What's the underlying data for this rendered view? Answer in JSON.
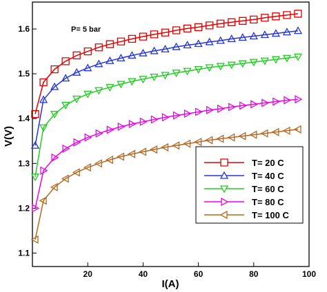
{
  "chart_data": {
    "type": "line",
    "title": "",
    "xlabel": "I(A)",
    "ylabel": "V(V)",
    "xlim": [
      0,
      100
    ],
    "ylim": [
      1.07,
      1.66
    ],
    "xticks": [
      20,
      40,
      60,
      80,
      100
    ],
    "yticks": [
      1.1,
      1.2,
      1.3,
      1.4,
      1.5,
      1.6
    ],
    "annotation": "P= 5 bar",
    "legend_position": "lower-right",
    "grid": false,
    "series": [
      {
        "name": "T= 20 C",
        "color": "#dd0000",
        "marker": "square",
        "x": [
          1,
          4,
          8,
          12,
          16,
          20,
          24,
          28,
          32,
          36,
          40,
          44,
          48,
          52,
          56,
          60,
          64,
          68,
          72,
          76,
          80,
          84,
          88,
          92,
          96
        ],
        "y": [
          1.41,
          1.481,
          1.51,
          1.528,
          1.541,
          1.55,
          1.559,
          1.566,
          1.572,
          1.578,
          1.583,
          1.588,
          1.592,
          1.597,
          1.601,
          1.604,
          1.608,
          1.612,
          1.615,
          1.618,
          1.621,
          1.625,
          1.628,
          1.631,
          1.634
        ]
      },
      {
        "name": "T= 40 C",
        "color": "#2233dd",
        "marker": "triangle-up",
        "x": [
          1,
          4,
          8,
          12,
          16,
          20,
          24,
          28,
          32,
          36,
          40,
          44,
          48,
          52,
          56,
          60,
          64,
          68,
          72,
          76,
          80,
          84,
          88,
          92,
          96
        ],
        "y": [
          1.34,
          1.442,
          1.471,
          1.49,
          1.503,
          1.513,
          1.522,
          1.529,
          1.535,
          1.541,
          1.546,
          1.551,
          1.555,
          1.56,
          1.564,
          1.567,
          1.571,
          1.574,
          1.578,
          1.581,
          1.584,
          1.587,
          1.59,
          1.593,
          1.596
        ]
      },
      {
        "name": "T= 60 C",
        "color": "#22cc22",
        "marker": "triangle-down",
        "x": [
          1,
          4,
          8,
          12,
          16,
          20,
          24,
          28,
          32,
          36,
          40,
          44,
          48,
          52,
          56,
          60,
          64,
          68,
          72,
          76,
          80,
          84,
          88,
          92,
          96
        ],
        "y": [
          1.27,
          1.38,
          1.41,
          1.43,
          1.444,
          1.455,
          1.463,
          1.47,
          1.477,
          1.483,
          1.488,
          1.493,
          1.497,
          1.502,
          1.506,
          1.51,
          1.514,
          1.517,
          1.52,
          1.523,
          1.526,
          1.529,
          1.532,
          1.535,
          1.538
        ]
      },
      {
        "name": "T= 80 C",
        "color": "#ee00ee",
        "marker": "triangle-right",
        "x": [
          1,
          4,
          8,
          12,
          16,
          20,
          24,
          28,
          32,
          36,
          40,
          44,
          48,
          52,
          56,
          60,
          64,
          68,
          72,
          76,
          80,
          84,
          88,
          92,
          96
        ],
        "y": [
          1.2,
          1.284,
          1.313,
          1.333,
          1.347,
          1.358,
          1.367,
          1.375,
          1.382,
          1.388,
          1.393,
          1.398,
          1.403,
          1.407,
          1.411,
          1.415,
          1.419,
          1.422,
          1.426,
          1.429,
          1.432,
          1.435,
          1.438,
          1.441,
          1.443
        ]
      },
      {
        "name": "T= 100 C",
        "color": "#b8661a",
        "marker": "triangle-left",
        "x": [
          1,
          4,
          8,
          12,
          16,
          20,
          24,
          28,
          32,
          36,
          40,
          44,
          48,
          52,
          56,
          60,
          64,
          68,
          72,
          76,
          80,
          84,
          88,
          92,
          96
        ],
        "y": [
          1.13,
          1.217,
          1.247,
          1.266,
          1.28,
          1.291,
          1.3,
          1.308,
          1.315,
          1.321,
          1.326,
          1.331,
          1.336,
          1.34,
          1.344,
          1.348,
          1.352,
          1.355,
          1.358,
          1.361,
          1.364,
          1.367,
          1.37,
          1.373,
          1.376
        ]
      }
    ]
  }
}
